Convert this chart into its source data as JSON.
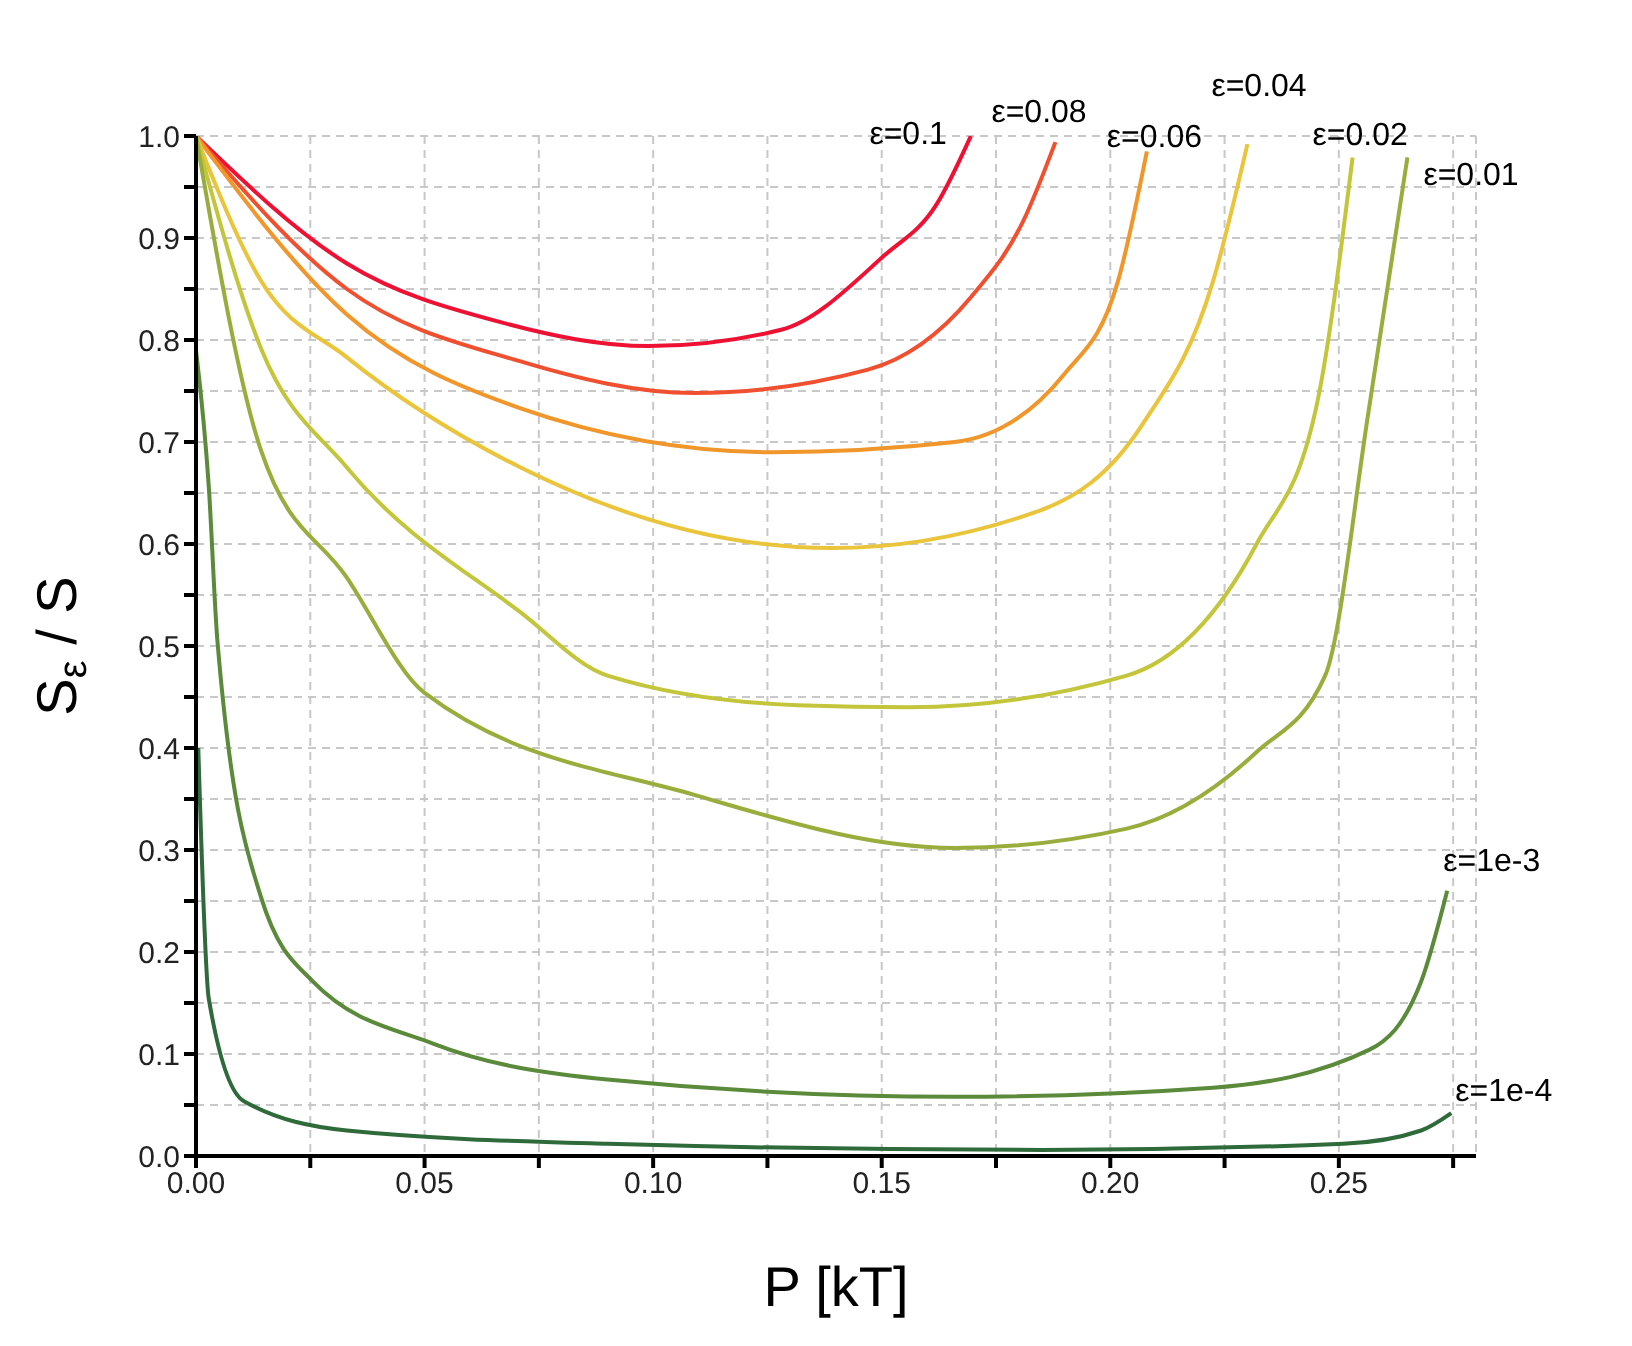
{
  "chart_data": {
    "type": "line",
    "xlabel": "P [kT]",
    "ylabel": "S$_{ε}$ / S",
    "xlim": [
      0,
      0.28
    ],
    "ylim": [
      0,
      1.0
    ],
    "xticks": [
      {
        "value": 0,
        "label": "0.00"
      },
      {
        "value": 0.025,
        "label": null
      },
      {
        "value": 0.05,
        "label": "0.05"
      },
      {
        "value": 0.075,
        "label": null
      },
      {
        "value": 0.1,
        "label": "0.10"
      },
      {
        "value": 0.125,
        "label": null
      },
      {
        "value": 0.15,
        "label": "0.15"
      },
      {
        "value": 0.175,
        "label": null
      },
      {
        "value": 0.2,
        "label": "0.20"
      },
      {
        "value": 0.225,
        "label": null
      },
      {
        "value": 0.25,
        "label": "0.25"
      },
      {
        "value": 0.275,
        "label": null
      }
    ],
    "yticks": [
      {
        "value": 0,
        "label": "0.0"
      },
      {
        "value": 0.05,
        "label": null
      },
      {
        "value": 0.1,
        "label": "0.1"
      },
      {
        "value": 0.15,
        "label": null
      },
      {
        "value": 0.2,
        "label": "0.2"
      },
      {
        "value": 0.25,
        "label": null
      },
      {
        "value": 0.3,
        "label": "0.3"
      },
      {
        "value": 0.35,
        "label": null
      },
      {
        "value": 0.4,
        "label": "0.4"
      },
      {
        "value": 0.45,
        "label": null
      },
      {
        "value": 0.5,
        "label": "0.5"
      },
      {
        "value": 0.55,
        "label": null
      },
      {
        "value": 0.6,
        "label": "0.6"
      },
      {
        "value": 0.65,
        "label": null
      },
      {
        "value": 0.7,
        "label": "0.7"
      },
      {
        "value": 0.75,
        "label": null
      },
      {
        "value": 0.8,
        "label": "0.8"
      },
      {
        "value": 0.85,
        "label": null
      },
      {
        "value": 0.9,
        "label": "0.9"
      },
      {
        "value": 0.95,
        "label": null
      },
      {
        "value": 1.0,
        "label": "1.0"
      }
    ],
    "grid": true,
    "line_style": "solid",
    "series": [
      {
        "color": "#ee1133",
        "x": [
          0,
          0.033,
          0.067,
          0.099,
          0.128,
          0.1506,
          0.162,
          0.1695
        ],
        "values": [
          1.0,
          0.875,
          0.817,
          0.794,
          0.81,
          0.883,
          0.933,
          1.0
        ]
      },
      {
        "color": "#f0502f",
        "x": [
          0,
          0.033,
          0.071,
          0.109,
          0.147,
          0.1695,
          0.181,
          0.188
        ],
        "values": [
          1.0,
          0.85,
          0.779,
          0.748,
          0.771,
          0.842,
          0.917,
          0.994
        ]
      },
      {
        "color": "#f0962a",
        "x": [
          0,
          0.033,
          0.071,
          0.126,
          0.166,
          0.19,
          0.2017,
          0.208
        ],
        "values": [
          1.0,
          0.825,
          0.733,
          0.69,
          0.7,
          0.767,
          0.858,
          0.985
        ]
      },
      {
        "color": "#eac43a",
        "x": [
          0,
          0.0142,
          0.033,
          0.071,
          0.139,
          0.1847,
          0.207,
          0.2225,
          0.23
        ],
        "values": [
          1.0,
          0.858,
          0.783,
          0.675,
          0.596,
          0.633,
          0.717,
          0.858,
          0.992
        ]
      },
      {
        "color": "#c3c53a",
        "x": [
          0,
          0.0142,
          0.033,
          0.071,
          0.09,
          0.1316,
          0.156,
          0.2036,
          0.232,
          0.245,
          0.253
        ],
        "values": [
          1.0,
          0.792,
          0.675,
          0.533,
          0.471,
          0.442,
          0.44,
          0.471,
          0.6,
          0.733,
          0.979
        ]
      },
      {
        "color": "#99ad3c",
        "x": [
          0,
          0.0142,
          0.033,
          0.05,
          0.109,
          0.166,
          0.2036,
          0.232,
          0.247,
          0.2566,
          0.265
        ],
        "values": [
          1.0,
          0.692,
          0.567,
          0.454,
          0.354,
          0.302,
          0.321,
          0.396,
          0.471,
          0.733,
          0.979
        ]
      },
      {
        "color": "#5a8a3a",
        "x": [
          0,
          0.0028,
          0.0047,
          0.0142,
          0.0256,
          0.052,
          0.09,
          0.166,
          0.2225,
          0.2566,
          0.268,
          0.2737
        ],
        "values": [
          0.79,
          0.656,
          0.504,
          0.254,
          0.171,
          0.11,
          0.075,
          0.058,
          0.067,
          0.104,
          0.171,
          0.26
        ]
      },
      {
        "color": "#2f6a3a",
        "x": [
          0.0005,
          0.0028,
          0.0104,
          0.033,
          0.09,
          0.185,
          0.251,
          0.268,
          0.2746
        ],
        "values": [
          0.4,
          0.154,
          0.054,
          0.025,
          0.012,
          0.006,
          0.012,
          0.025,
          0.042
        ]
      }
    ],
    "annotations": [
      {
        "text": "ε=0.1",
        "x": 0.1695,
        "y": 1.0
      },
      {
        "text": "ε=0.08",
        "x": 0.188,
        "y": 0.994
      },
      {
        "text": "ε=0.06",
        "x": 0.208,
        "y": 0.985
      },
      {
        "text": "ε=0.04",
        "x": 0.23,
        "y": 0.992
      },
      {
        "text": "ε=0.02",
        "x": 0.253,
        "y": 0.979
      },
      {
        "text": "ε=0.01",
        "x": 0.265,
        "y": 0.979
      },
      {
        "text": "ε=1e-3",
        "x": 0.2737,
        "y": 0.26
      },
      {
        "text": "ε=1e-4",
        "x": 0.2746,
        "y": 0.042
      }
    ]
  }
}
